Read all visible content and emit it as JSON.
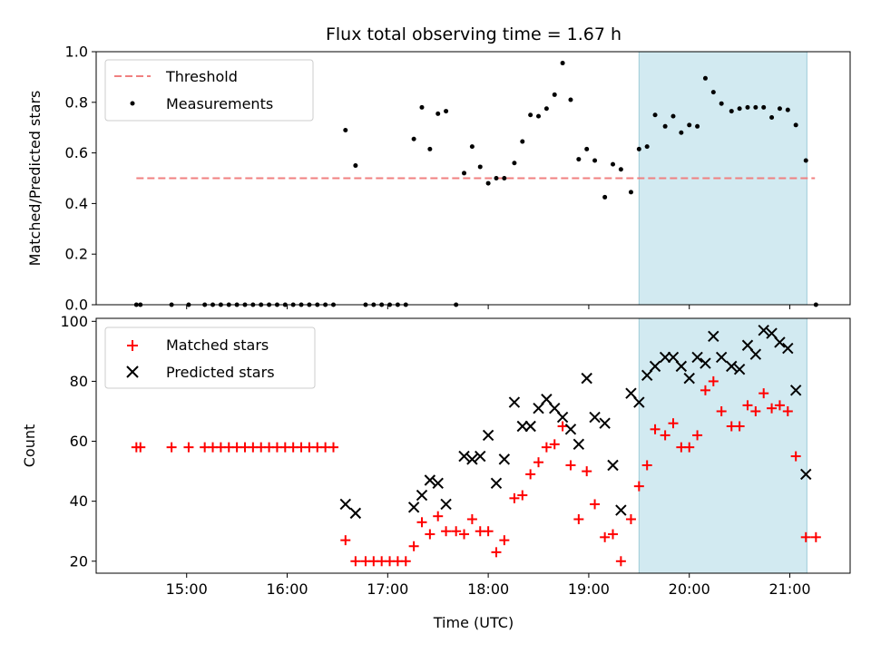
{
  "title": "Flux total observing time = 1.67 h",
  "colors": {
    "threshold": "#f08080",
    "measurement": "#000000",
    "matched": "#ff0000",
    "predicted": "#000000",
    "highlight": "#add8e6"
  },
  "chart_data": [
    {
      "type": "scatter",
      "ylabel": "Matched/Predicted stars",
      "ylim": [
        0,
        1
      ],
      "yticks": [
        "0.0",
        "0.2",
        "0.4",
        "0.6",
        "0.8",
        "1.0"
      ],
      "xlim_hours": [
        14.1,
        21.6
      ],
      "highlight_span_hours": [
        19.5,
        21.17
      ],
      "legend": {
        "placement": "upper left",
        "entries": [
          "Threshold",
          "Measurements"
        ]
      },
      "threshold": {
        "name": "Threshold",
        "value": 0.5,
        "x_range_hours": [
          14.5,
          21.25
        ],
        "style": "dashed"
      },
      "series": [
        {
          "name": "Measurements",
          "x_hours": [
            14.5,
            14.54,
            14.85,
            15.02,
            15.18,
            15.26,
            15.34,
            15.42,
            15.5,
            15.58,
            15.66,
            15.74,
            15.82,
            15.9,
            15.98,
            16.06,
            16.14,
            16.22,
            16.3,
            16.38,
            16.46,
            16.58,
            16.68,
            16.78,
            16.86,
            16.94,
            17.02,
            17.1,
            17.18,
            17.26,
            17.34,
            17.42,
            17.5,
            17.58,
            17.68,
            17.76,
            17.84,
            17.92,
            18.0,
            18.08,
            18.16,
            18.26,
            18.34,
            18.42,
            18.5,
            18.58,
            18.66,
            18.74,
            18.82,
            18.9,
            18.98,
            19.06,
            19.16,
            19.24,
            19.32,
            19.42,
            19.5,
            19.58,
            19.66,
            19.76,
            19.84,
            19.92,
            20.0,
            20.08,
            20.16,
            20.24,
            20.32,
            20.42,
            20.5,
            20.58,
            20.66,
            20.74,
            20.82,
            20.9,
            20.98,
            21.06,
            21.16,
            21.26
          ],
          "y": [
            0,
            0,
            0,
            0,
            0,
            0,
            0,
            0,
            0,
            0,
            0,
            0,
            0,
            0,
            0,
            0,
            0,
            0,
            0,
            0,
            0,
            0.69,
            0.55,
            0,
            0,
            0,
            0,
            0,
            0,
            0.655,
            0.78,
            0.615,
            0.755,
            0.765,
            0,
            0.52,
            0.625,
            0.545,
            0.48,
            0.5,
            0.5,
            0.56,
            0.645,
            0.75,
            0.745,
            0.775,
            0.83,
            0.955,
            0.81,
            0.575,
            0.615,
            0.57,
            0.425,
            0.555,
            0.535,
            0.445,
            0.615,
            0.625,
            0.75,
            0.705,
            0.745,
            0.68,
            0.71,
            0.705,
            0.895,
            0.84,
            0.795,
            0.765,
            0.775,
            0.78,
            0.78,
            0.78,
            0.74,
            0.775,
            0.77,
            0.71,
            0.57,
            0
          ]
        }
      ]
    },
    {
      "type": "scatter",
      "xlabel": "Time (UTC)",
      "ylabel": "Count",
      "ylim": [
        16,
        101
      ],
      "yticks": [
        "20",
        "40",
        "60",
        "80",
        "100"
      ],
      "xticks": [
        "15:00",
        "16:00",
        "17:00",
        "18:00",
        "19:00",
        "20:00",
        "21:00"
      ],
      "xlim_hours": [
        14.1,
        21.6
      ],
      "highlight_span_hours": [
        19.5,
        21.17
      ],
      "legend": {
        "placement": "upper left",
        "entries": [
          "Matched stars",
          "Predicted stars"
        ]
      },
      "series": [
        {
          "name": "Matched stars",
          "marker": "plus",
          "x_hours": [
            14.5,
            14.54,
            14.85,
            15.02,
            15.18,
            15.26,
            15.34,
            15.42,
            15.5,
            15.58,
            15.66,
            15.74,
            15.82,
            15.9,
            15.98,
            16.06,
            16.14,
            16.22,
            16.3,
            16.38,
            16.46,
            16.58,
            16.68,
            16.78,
            16.86,
            16.94,
            17.02,
            17.1,
            17.18,
            17.26,
            17.34,
            17.42,
            17.5,
            17.58,
            17.68,
            17.76,
            17.84,
            17.92,
            18.0,
            18.08,
            18.16,
            18.26,
            18.34,
            18.42,
            18.5,
            18.58,
            18.66,
            18.74,
            18.82,
            18.9,
            18.98,
            19.06,
            19.16,
            19.24,
            19.32,
            19.42,
            19.5,
            19.58,
            19.66,
            19.76,
            19.84,
            19.92,
            20.0,
            20.08,
            20.16,
            20.24,
            20.32,
            20.42,
            20.5,
            20.58,
            20.66,
            20.74,
            20.82,
            20.9,
            20.98,
            21.06,
            21.16,
            21.26
          ],
          "y": [
            58,
            58,
            58,
            58,
            58,
            58,
            58,
            58,
            58,
            58,
            58,
            58,
            58,
            58,
            58,
            58,
            58,
            58,
            58,
            58,
            58,
            27,
            20,
            20,
            20,
            20,
            20,
            20,
            20,
            25,
            33,
            29,
            35,
            30,
            30,
            29,
            34,
            30,
            30,
            23,
            27,
            41,
            42,
            49,
            53,
            58,
            59,
            65,
            52,
            34,
            50,
            39,
            28,
            29,
            20,
            34,
            45,
            52,
            64,
            62,
            66,
            58,
            58,
            62,
            77,
            80,
            70,
            65,
            65,
            72,
            70,
            76,
            71,
            72,
            70,
            55,
            28,
            28
          ]
        },
        {
          "name": "Predicted stars",
          "marker": "x",
          "x_hours": [
            16.58,
            16.68,
            17.26,
            17.34,
            17.42,
            17.5,
            17.58,
            17.76,
            17.84,
            17.92,
            18.0,
            18.08,
            18.16,
            18.26,
            18.34,
            18.42,
            18.5,
            18.58,
            18.66,
            18.74,
            18.82,
            18.9,
            18.98,
            19.06,
            19.16,
            19.24,
            19.32,
            19.42,
            19.5,
            19.58,
            19.66,
            19.76,
            19.84,
            19.92,
            20.0,
            20.08,
            20.16,
            20.24,
            20.32,
            20.42,
            20.5,
            20.58,
            20.66,
            20.74,
            20.82,
            20.9,
            20.98,
            21.06,
            21.16
          ],
          "y": [
            39,
            36,
            38,
            42,
            47,
            46,
            39,
            55,
            54,
            55,
            62,
            46,
            54,
            73,
            65,
            65,
            71,
            74,
            71,
            68,
            64,
            59,
            81,
            68,
            66,
            52,
            37,
            76,
            73,
            82,
            85,
            88,
            88,
            85,
            81,
            88,
            86,
            95,
            88,
            85,
            84,
            92,
            89,
            97,
            96,
            93,
            91,
            77,
            49
          ]
        }
      ]
    }
  ]
}
